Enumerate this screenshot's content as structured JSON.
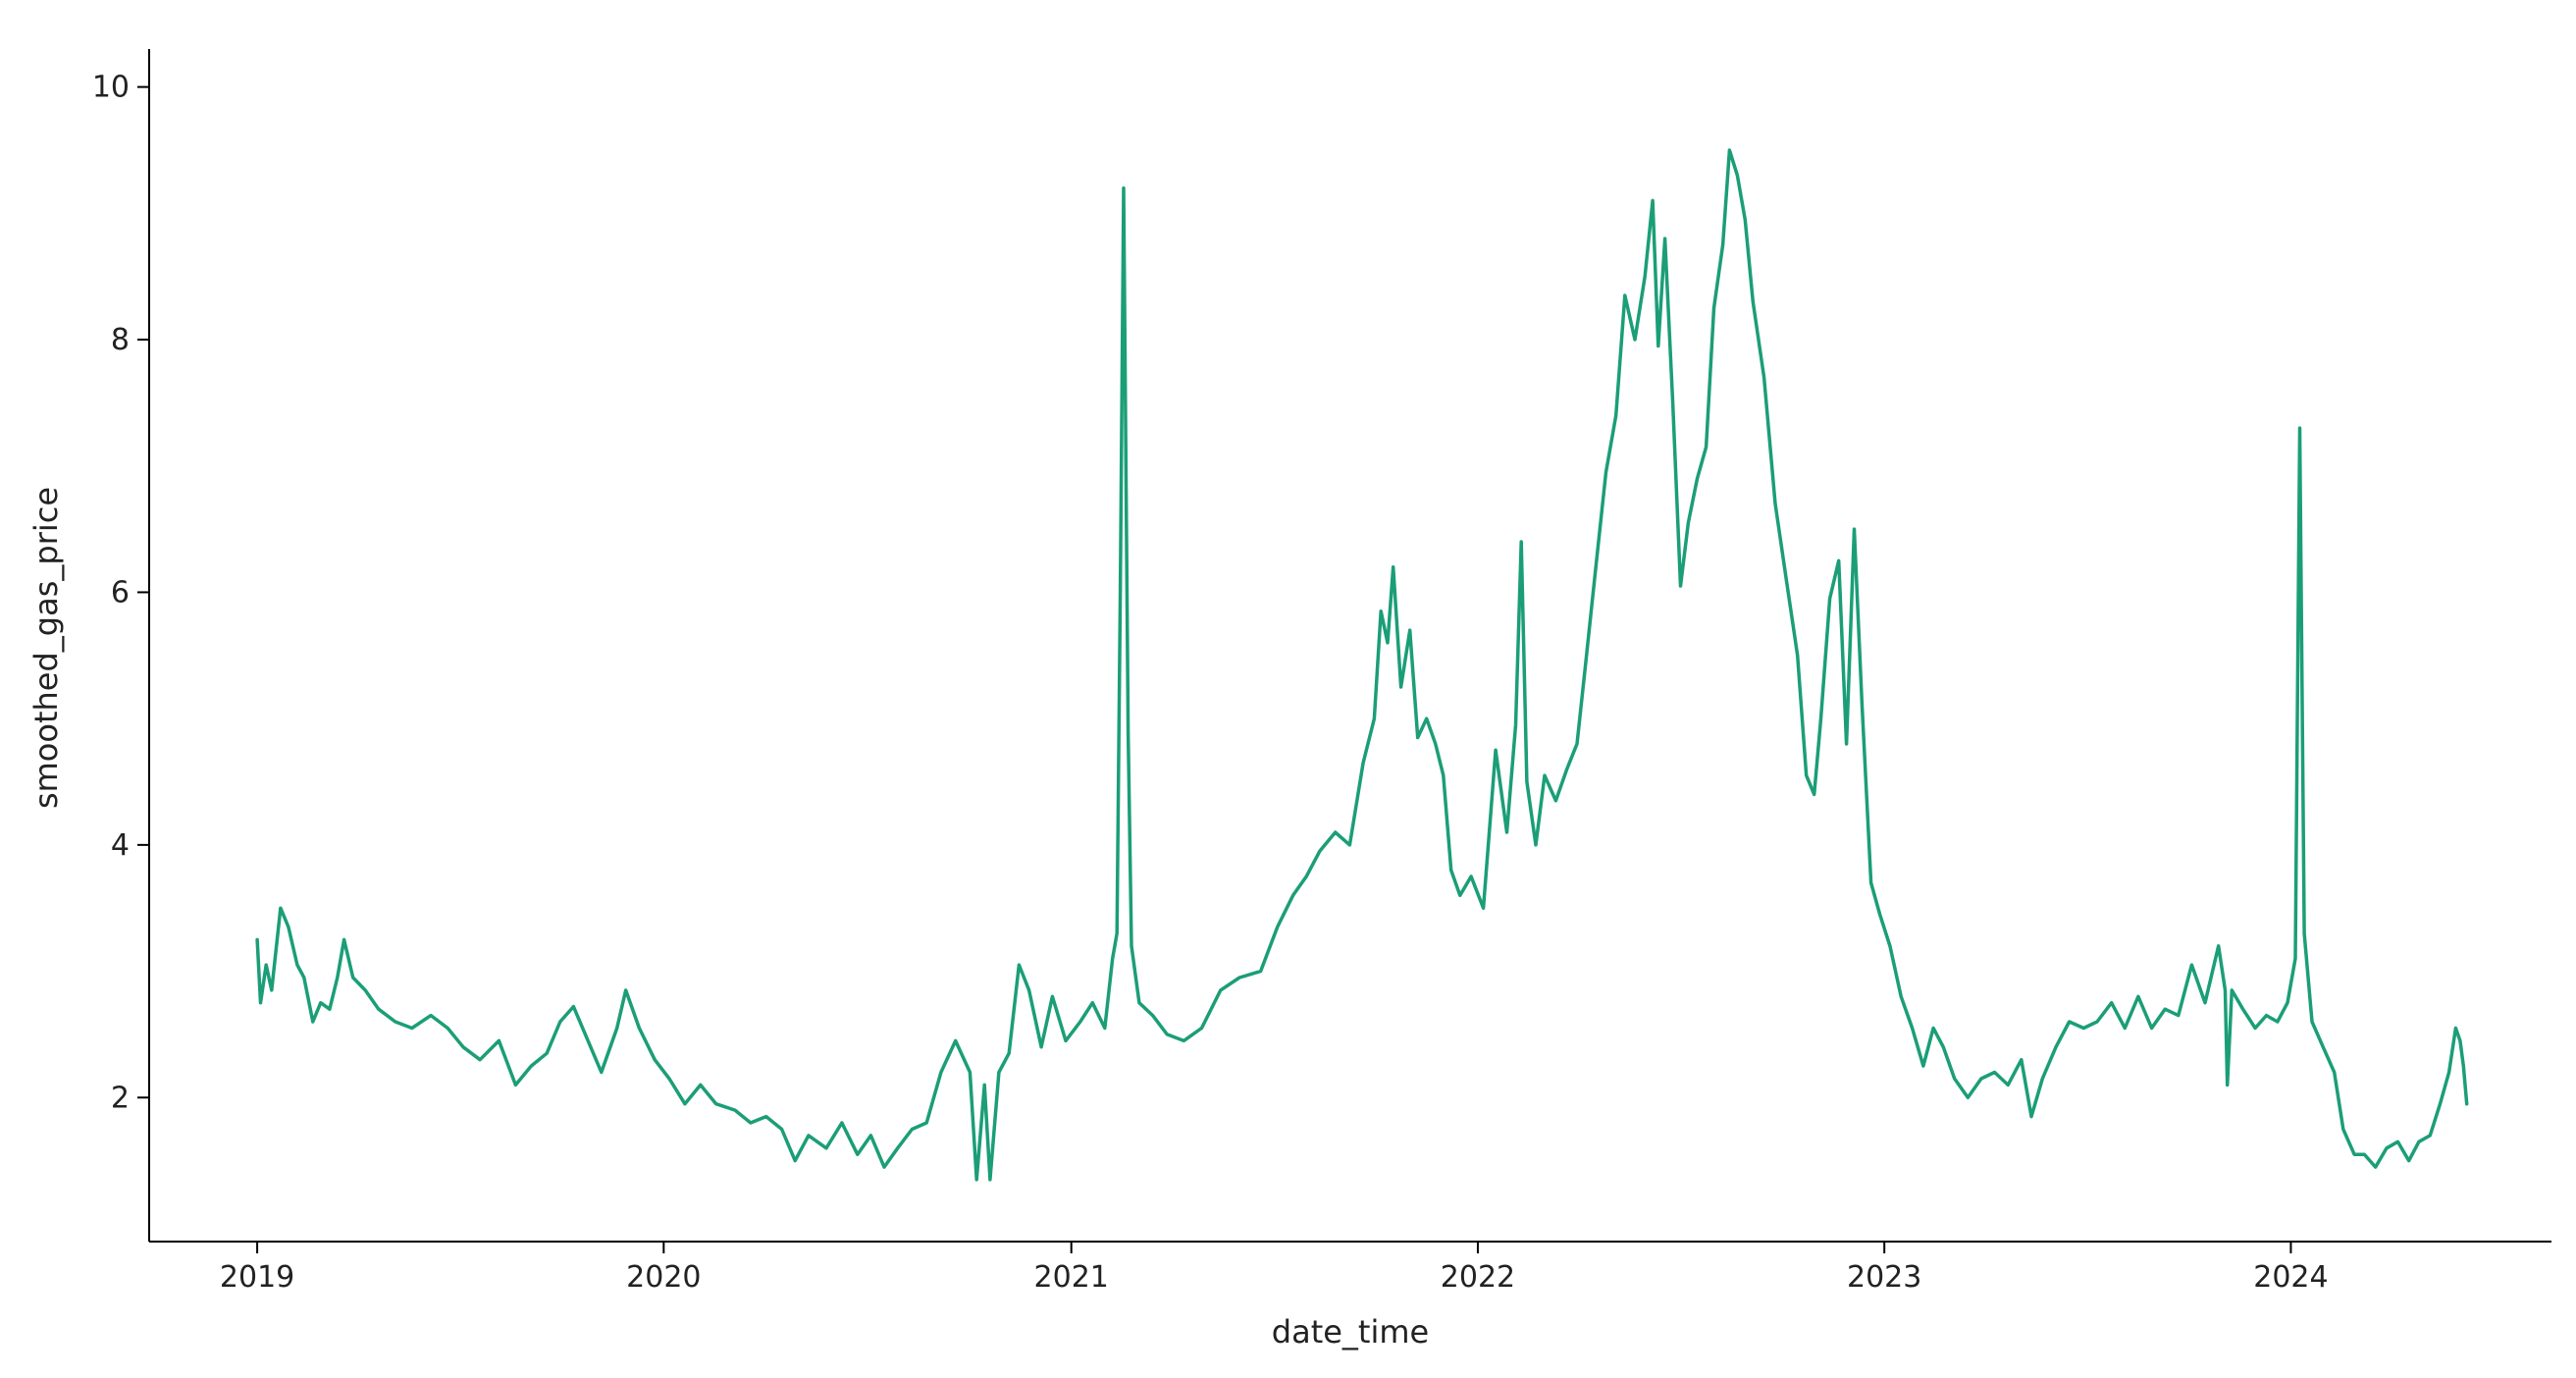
{
  "chart_data": {
    "type": "line",
    "title": "",
    "xlabel": "date_time",
    "ylabel": "smoothed_gas_price",
    "x_ticks": [
      {
        "value": "2019-01-01",
        "label": "2019"
      },
      {
        "value": "2020-01-01",
        "label": "2020"
      },
      {
        "value": "2021-01-01",
        "label": "2021"
      },
      {
        "value": "2022-01-01",
        "label": "2022"
      },
      {
        "value": "2023-01-01",
        "label": "2023"
      },
      {
        "value": "2024-01-01",
        "label": "2024"
      }
    ],
    "y_ticks": [
      {
        "value": 2,
        "label": "2"
      },
      {
        "value": 4,
        "label": "4"
      },
      {
        "value": 6,
        "label": "6"
      },
      {
        "value": 8,
        "label": "8"
      },
      {
        "value": 10,
        "label": "10"
      }
    ],
    "xlim": [
      "2018-09-26",
      "2024-08-22"
    ],
    "ylim": [
      0.86,
      10.3
    ],
    "grid": false,
    "legend": "none",
    "series": [
      {
        "color": "#1b9e77",
        "points": [
          [
            "2019-01-01",
            3.25
          ],
          [
            "2019-01-04",
            2.75
          ],
          [
            "2019-01-09",
            3.05
          ],
          [
            "2019-01-14",
            2.85
          ],
          [
            "2019-01-22",
            3.5
          ],
          [
            "2019-01-29",
            3.35
          ],
          [
            "2019-02-06",
            3.05
          ],
          [
            "2019-02-12",
            2.95
          ],
          [
            "2019-02-20",
            2.6
          ],
          [
            "2019-02-27",
            2.75
          ],
          [
            "2019-03-07",
            2.7
          ],
          [
            "2019-03-14",
            2.95
          ],
          [
            "2019-03-20",
            3.25
          ],
          [
            "2019-03-28",
            2.95
          ],
          [
            "2019-04-08",
            2.85
          ],
          [
            "2019-04-20",
            2.7
          ],
          [
            "2019-05-05",
            2.6
          ],
          [
            "2019-05-20",
            2.55
          ],
          [
            "2019-06-06",
            2.65
          ],
          [
            "2019-06-21",
            2.55
          ],
          [
            "2019-07-05",
            2.4
          ],
          [
            "2019-07-20",
            2.3
          ],
          [
            "2019-08-06",
            2.45
          ],
          [
            "2019-08-21",
            2.1
          ],
          [
            "2019-09-04",
            2.25
          ],
          [
            "2019-09-18",
            2.35
          ],
          [
            "2019-09-30",
            2.6
          ],
          [
            "2019-10-12",
            2.72
          ],
          [
            "2019-10-25",
            2.45
          ],
          [
            "2019-11-06",
            2.2
          ],
          [
            "2019-11-20",
            2.55
          ],
          [
            "2019-11-28",
            2.85
          ],
          [
            "2019-12-10",
            2.55
          ],
          [
            "2019-12-24",
            2.3
          ],
          [
            "2020-01-06",
            2.15
          ],
          [
            "2020-01-20",
            1.95
          ],
          [
            "2020-02-03",
            2.1
          ],
          [
            "2020-02-17",
            1.95
          ],
          [
            "2020-03-05",
            1.9
          ],
          [
            "2020-03-19",
            1.8
          ],
          [
            "2020-04-02",
            1.85
          ],
          [
            "2020-04-16",
            1.75
          ],
          [
            "2020-04-28",
            1.5
          ],
          [
            "2020-05-10",
            1.7
          ],
          [
            "2020-05-26",
            1.6
          ],
          [
            "2020-06-09",
            1.8
          ],
          [
            "2020-06-23",
            1.55
          ],
          [
            "2020-07-05",
            1.7
          ],
          [
            "2020-07-17",
            1.45
          ],
          [
            "2020-07-29",
            1.6
          ],
          [
            "2020-08-11",
            1.75
          ],
          [
            "2020-08-24",
            1.8
          ],
          [
            "2020-09-06",
            2.2
          ],
          [
            "2020-09-19",
            2.45
          ],
          [
            "2020-10-02",
            2.2
          ],
          [
            "2020-10-08",
            1.35
          ],
          [
            "2020-10-15",
            2.1
          ],
          [
            "2020-10-20",
            1.35
          ],
          [
            "2020-10-28",
            2.2
          ],
          [
            "2020-11-06",
            2.35
          ],
          [
            "2020-11-15",
            3.05
          ],
          [
            "2020-11-24",
            2.85
          ],
          [
            "2020-12-05",
            2.4
          ],
          [
            "2020-12-15",
            2.8
          ],
          [
            "2020-12-27",
            2.45
          ],
          [
            "2021-01-09",
            2.6
          ],
          [
            "2021-01-20",
            2.75
          ],
          [
            "2021-01-31",
            2.55
          ],
          [
            "2021-02-07",
            3.1
          ],
          [
            "2021-02-11",
            3.3
          ],
          [
            "2021-02-14",
            6.0
          ],
          [
            "2021-02-17",
            9.2
          ],
          [
            "2021-02-21",
            4.9
          ],
          [
            "2021-02-24",
            3.2
          ],
          [
            "2021-03-03",
            2.75
          ],
          [
            "2021-03-15",
            2.65
          ],
          [
            "2021-03-28",
            2.5
          ],
          [
            "2021-04-12",
            2.45
          ],
          [
            "2021-04-28",
            2.55
          ],
          [
            "2021-05-15",
            2.85
          ],
          [
            "2021-06-01",
            2.95
          ],
          [
            "2021-06-20",
            3.0
          ],
          [
            "2021-07-05",
            3.35
          ],
          [
            "2021-07-19",
            3.6
          ],
          [
            "2021-07-31",
            3.75
          ],
          [
            "2021-08-12",
            3.95
          ],
          [
            "2021-08-26",
            4.1
          ],
          [
            "2021-09-08",
            4.0
          ],
          [
            "2021-09-20",
            4.65
          ],
          [
            "2021-09-30",
            5.0
          ],
          [
            "2021-10-06",
            5.85
          ],
          [
            "2021-10-12",
            5.6
          ],
          [
            "2021-10-17",
            6.2
          ],
          [
            "2021-10-24",
            5.25
          ],
          [
            "2021-11-01",
            5.7
          ],
          [
            "2021-11-08",
            4.85
          ],
          [
            "2021-11-16",
            5.0
          ],
          [
            "2021-11-24",
            4.8
          ],
          [
            "2021-12-01",
            4.55
          ],
          [
            "2021-12-08",
            3.8
          ],
          [
            "2021-12-16",
            3.6
          ],
          [
            "2021-12-26",
            3.75
          ],
          [
            "2022-01-06",
            3.5
          ],
          [
            "2022-01-17",
            4.75
          ],
          [
            "2022-01-27",
            4.1
          ],
          [
            "2022-02-04",
            4.95
          ],
          [
            "2022-02-09",
            6.4
          ],
          [
            "2022-02-14",
            4.5
          ],
          [
            "2022-02-22",
            4.0
          ],
          [
            "2022-03-02",
            4.55
          ],
          [
            "2022-03-12",
            4.35
          ],
          [
            "2022-03-22",
            4.6
          ],
          [
            "2022-03-31",
            4.8
          ],
          [
            "2022-04-08",
            5.45
          ],
          [
            "2022-04-17",
            6.2
          ],
          [
            "2022-04-26",
            6.95
          ],
          [
            "2022-05-05",
            7.4
          ],
          [
            "2022-05-13",
            8.35
          ],
          [
            "2022-05-22",
            8.0
          ],
          [
            "2022-05-31",
            8.5
          ],
          [
            "2022-06-07",
            9.1
          ],
          [
            "2022-06-12",
            7.95
          ],
          [
            "2022-06-18",
            8.8
          ],
          [
            "2022-06-25",
            7.5
          ],
          [
            "2022-07-02",
            6.05
          ],
          [
            "2022-07-09",
            6.55
          ],
          [
            "2022-07-17",
            6.9
          ],
          [
            "2022-07-25",
            7.15
          ],
          [
            "2022-08-01",
            8.25
          ],
          [
            "2022-08-09",
            8.75
          ],
          [
            "2022-08-15",
            9.5
          ],
          [
            "2022-08-22",
            9.3
          ],
          [
            "2022-08-29",
            8.95
          ],
          [
            "2022-09-05",
            8.3
          ],
          [
            "2022-09-15",
            7.7
          ],
          [
            "2022-09-25",
            6.7
          ],
          [
            "2022-10-05",
            6.1
          ],
          [
            "2022-10-15",
            5.5
          ],
          [
            "2022-10-23",
            4.55
          ],
          [
            "2022-10-30",
            4.4
          ],
          [
            "2022-11-05",
            5.0
          ],
          [
            "2022-11-13",
            5.95
          ],
          [
            "2022-11-21",
            6.25
          ],
          [
            "2022-11-28",
            4.8
          ],
          [
            "2022-12-05",
            6.5
          ],
          [
            "2022-12-12",
            5.1
          ],
          [
            "2022-12-20",
            3.7
          ],
          [
            "2022-12-28",
            3.45
          ],
          [
            "2023-01-06",
            3.2
          ],
          [
            "2023-01-16",
            2.8
          ],
          [
            "2023-01-26",
            2.55
          ],
          [
            "2023-02-05",
            2.25
          ],
          [
            "2023-02-14",
            2.55
          ],
          [
            "2023-02-23",
            2.4
          ],
          [
            "2023-03-05",
            2.15
          ],
          [
            "2023-03-17",
            2.0
          ],
          [
            "2023-03-29",
            2.15
          ],
          [
            "2023-04-10",
            2.2
          ],
          [
            "2023-04-22",
            2.1
          ],
          [
            "2023-05-04",
            2.3
          ],
          [
            "2023-05-13",
            1.85
          ],
          [
            "2023-05-23",
            2.15
          ],
          [
            "2023-06-04",
            2.4
          ],
          [
            "2023-06-16",
            2.6
          ],
          [
            "2023-06-29",
            2.55
          ],
          [
            "2023-07-11",
            2.6
          ],
          [
            "2023-07-24",
            2.75
          ],
          [
            "2023-08-05",
            2.55
          ],
          [
            "2023-08-17",
            2.8
          ],
          [
            "2023-08-29",
            2.55
          ],
          [
            "2023-09-10",
            2.7
          ],
          [
            "2023-09-22",
            2.65
          ],
          [
            "2023-10-04",
            3.05
          ],
          [
            "2023-10-16",
            2.75
          ],
          [
            "2023-10-28",
            3.2
          ],
          [
            "2023-11-03",
            2.85
          ],
          [
            "2023-11-05",
            2.1
          ],
          [
            "2023-11-09",
            2.85
          ],
          [
            "2023-11-19",
            2.7
          ],
          [
            "2023-11-30",
            2.55
          ],
          [
            "2023-12-10",
            2.65
          ],
          [
            "2023-12-20",
            2.6
          ],
          [
            "2023-12-29",
            2.75
          ],
          [
            "2024-01-05",
            3.1
          ],
          [
            "2024-01-09",
            7.3
          ],
          [
            "2024-01-13",
            3.3
          ],
          [
            "2024-01-20",
            2.6
          ],
          [
            "2024-01-30",
            2.4
          ],
          [
            "2024-02-09",
            2.2
          ],
          [
            "2024-02-17",
            1.75
          ],
          [
            "2024-02-27",
            1.55
          ],
          [
            "2024-03-07",
            1.55
          ],
          [
            "2024-03-17",
            1.45
          ],
          [
            "2024-03-27",
            1.6
          ],
          [
            "2024-04-06",
            1.65
          ],
          [
            "2024-04-16",
            1.5
          ],
          [
            "2024-04-25",
            1.65
          ],
          [
            "2024-05-05",
            1.7
          ],
          [
            "2024-05-14",
            1.95
          ],
          [
            "2024-05-22",
            2.2
          ],
          [
            "2024-05-28",
            2.55
          ],
          [
            "2024-06-01",
            2.45
          ],
          [
            "2024-06-04",
            2.25
          ],
          [
            "2024-06-07",
            1.95
          ]
        ]
      }
    ]
  }
}
